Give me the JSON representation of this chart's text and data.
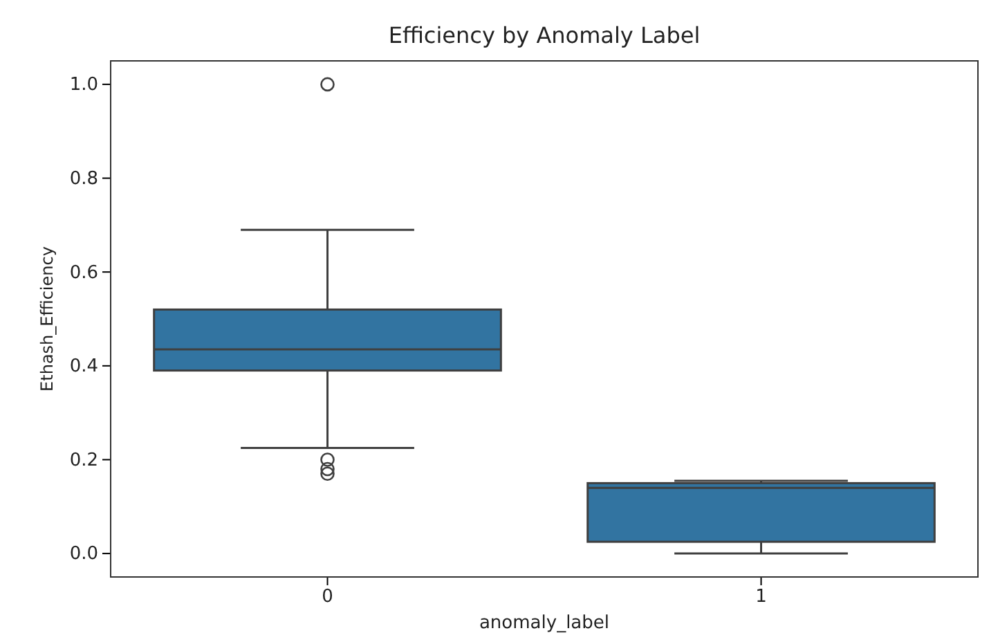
{
  "chart_data": {
    "type": "box",
    "title": "Efficiency by Anomaly Label",
    "xlabel": "anomaly_label",
    "ylabel": "Ethash_Efficiency",
    "categories": [
      "0",
      "1"
    ],
    "series": [
      {
        "color": "#3274a1",
        "boxes": [
          {
            "low": 0.225,
            "q1": 0.39,
            "median": 0.435,
            "q3": 0.52,
            "high": 0.69,
            "outliers": [
              1.0,
              0.2,
              0.18,
              0.17
            ]
          },
          {
            "low": 0.0,
            "q1": 0.025,
            "median": 0.14,
            "q3": 0.15,
            "high": 0.155
          }
        ]
      }
    ],
    "ylim": [
      -0.05,
      1.05
    ],
    "yticks": [
      {
        "value": 0,
        "label": "0.0"
      },
      0.2,
      0.4,
      0.6,
      0.8,
      {
        "value": 1,
        "label": "1.0"
      }
    ],
    "grid": false
  }
}
